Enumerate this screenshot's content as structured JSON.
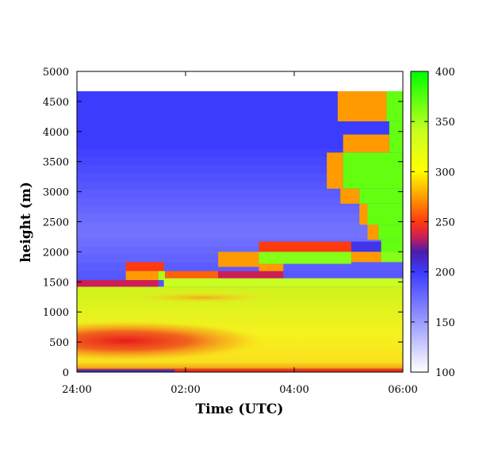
{
  "chart_data": {
    "type": "heatmap",
    "title": "",
    "xlabel": "Time (UTC)",
    "ylabel": "height (m)",
    "x_ticks": [
      "24:00",
      "02:00",
      "04:00",
      "06:00"
    ],
    "x_tick_values": [
      0,
      2,
      4,
      6
    ],
    "xlim": [
      0,
      6
    ],
    "y_ticks": [
      "0",
      "500",
      "1000",
      "1500",
      "2000",
      "2500",
      "3000",
      "3500",
      "4000",
      "4500",
      "5000"
    ],
    "y_tick_values": [
      0,
      500,
      1000,
      1500,
      2000,
      2500,
      3000,
      3500,
      4000,
      4500,
      5000
    ],
    "ylim": [
      0,
      5000
    ],
    "colorbar": {
      "ticks": [
        "100",
        "150",
        "200",
        "250",
        "300",
        "350",
        "400"
      ],
      "tick_values": [
        100,
        150,
        200,
        250,
        300,
        350,
        400
      ],
      "range": [
        100,
        400
      ]
    },
    "data_top": 4670,
    "upper_layer_value": 200,
    "regions": [
      {
        "x0": 4.8,
        "x1": 5.7,
        "y0": 4170,
        "y1": 4670,
        "value": 275
      },
      {
        "x0": 5.7,
        "x1": 6.0,
        "y0": 4170,
        "y1": 4670,
        "value": 370
      },
      {
        "x0": 4.9,
        "x1": 5.75,
        "y0": 3650,
        "y1": 3950,
        "value": 275
      },
      {
        "x0": 5.75,
        "x1": 6.0,
        "y0": 3650,
        "y1": 4170,
        "value": 370
      },
      {
        "x0": 4.6,
        "x1": 4.9,
        "y0": 3050,
        "y1": 3650,
        "value": 275
      },
      {
        "x0": 4.9,
        "x1": 6.0,
        "y0": 3050,
        "y1": 3650,
        "value": 370
      },
      {
        "x0": 4.85,
        "x1": 5.2,
        "y0": 2800,
        "y1": 3050,
        "value": 275
      },
      {
        "x0": 5.2,
        "x1": 6.0,
        "y0": 2800,
        "y1": 3050,
        "value": 370
      },
      {
        "x0": 5.2,
        "x1": 5.35,
        "y0": 2450,
        "y1": 2800,
        "value": 275
      },
      {
        "x0": 5.35,
        "x1": 6.0,
        "y0": 2450,
        "y1": 2800,
        "value": 370
      },
      {
        "x0": 5.35,
        "x1": 5.55,
        "y0": 2200,
        "y1": 2450,
        "value": 275
      },
      {
        "x0": 5.55,
        "x1": 6.0,
        "y0": 2200,
        "y1": 2450,
        "value": 370
      },
      {
        "x0": 3.35,
        "x1": 5.05,
        "y0": 2000,
        "y1": 2170,
        "value": 250
      },
      {
        "x0": 5.05,
        "x1": 5.6,
        "y0": 2000,
        "y1": 2170,
        "value": 205
      },
      {
        "x0": 5.6,
        "x1": 6.0,
        "y0": 2000,
        "y1": 2200,
        "value": 370
      },
      {
        "x0": 2.6,
        "x1": 3.35,
        "y0": 1750,
        "y1": 2000,
        "value": 275
      },
      {
        "x0": 3.35,
        "x1": 5.05,
        "y0": 1800,
        "y1": 2000,
        "value": 360
      },
      {
        "x0": 5.05,
        "x1": 5.6,
        "y0": 1830,
        "y1": 2000,
        "value": 275
      },
      {
        "x0": 5.6,
        "x1": 6.0,
        "y0": 1830,
        "y1": 2000,
        "value": 360
      },
      {
        "x0": 0.9,
        "x1": 1.6,
        "y0": 1680,
        "y1": 1830,
        "value": 250
      },
      {
        "x0": 3.35,
        "x1": 3.8,
        "y0": 1650,
        "y1": 1800,
        "value": 275
      },
      {
        "x0": 0.9,
        "x1": 1.5,
        "y0": 1530,
        "y1": 1680,
        "value": 275
      },
      {
        "x0": 1.5,
        "x1": 1.62,
        "y0": 1530,
        "y1": 1680,
        "value": 350
      },
      {
        "x0": 1.62,
        "x1": 2.6,
        "y0": 1560,
        "y1": 1680,
        "value": 260
      },
      {
        "x0": 2.6,
        "x1": 3.8,
        "y0": 1560,
        "y1": 1680,
        "value": 235
      },
      {
        "x0": 0.0,
        "x1": 1.5,
        "y0": 1420,
        "y1": 1530,
        "value": 235
      },
      {
        "x0": 1.6,
        "x1": 6.0,
        "y0": 1420,
        "y1": 1560,
        "value": 340
      }
    ]
  }
}
